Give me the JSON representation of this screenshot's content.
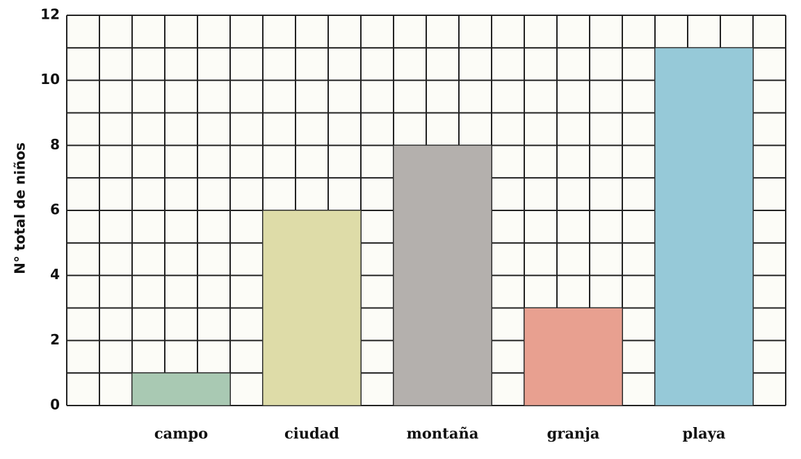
{
  "chart_data": {
    "type": "bar",
    "y_label": "N° total de niños",
    "categories": [
      "campo",
      "ciudad",
      "montaña",
      "granja",
      "playa"
    ],
    "values": [
      1,
      6,
      8,
      3,
      11
    ],
    "colors": [
      "#a9c9b3",
      "#dedca8",
      "#b4b0ad",
      "#e8a090",
      "#96c9d8"
    ],
    "ylim": [
      0,
      12
    ],
    "yticks": [
      0,
      2,
      4,
      6,
      8,
      10,
      12
    ],
    "grid": true
  }
}
